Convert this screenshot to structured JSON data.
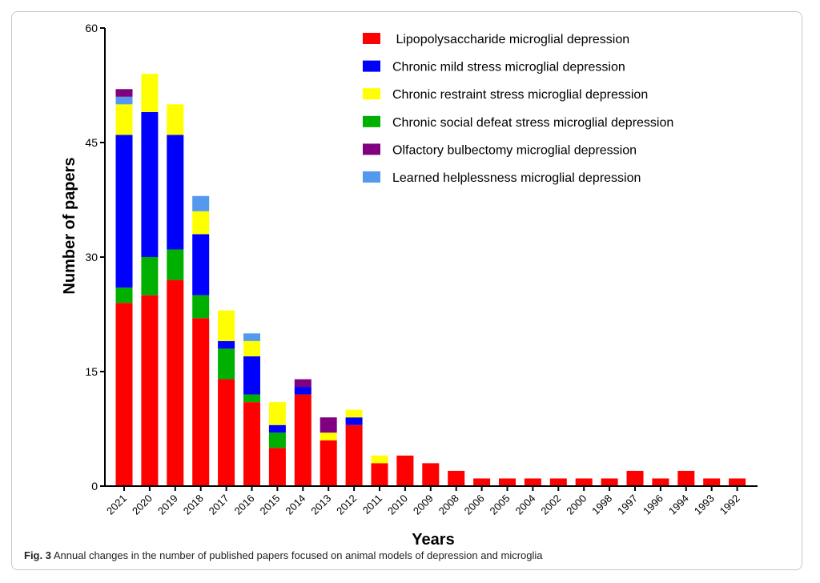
{
  "caption": {
    "label": "Fig. 3",
    "text": "Annual changes in the number of published papers focused on animal models of depression and microglia"
  },
  "chart_data": {
    "type": "bar",
    "stacked": true,
    "title": "",
    "xlabel": "Years",
    "ylabel": "Number of papers",
    "ylim": [
      0,
      60
    ],
    "yticks": [
      "0",
      "15",
      "30",
      "45",
      "60"
    ],
    "grid": false,
    "legend_position": "top-right",
    "categories": [
      "2021",
      "2020",
      "2019",
      "2018",
      "2017",
      "2016",
      "2015",
      "2014",
      "2013",
      "2012",
      "2011",
      "2010",
      "2009",
      "2008",
      "2006",
      "2005",
      "2004",
      "2002",
      "2000",
      "1998",
      "1997",
      "1996",
      "1994",
      "1993",
      "1992"
    ],
    "series": [
      {
        "name": " Lipopolysaccharide microglial depression",
        "color": "#ff0000",
        "values": [
          24,
          25,
          27,
          22,
          14,
          11,
          5,
          12,
          6,
          8,
          3,
          4,
          3,
          2,
          1,
          1,
          1,
          1,
          1,
          1,
          2,
          1,
          2,
          1,
          1
        ]
      },
      {
        "name": "Chronic social defeat stress microglial depression",
        "color": "#00b000",
        "values": [
          2,
          5,
          4,
          3,
          4,
          1,
          2,
          0,
          0,
          0,
          0,
          0,
          0,
          0,
          0,
          0,
          0,
          0,
          0,
          0,
          0,
          0,
          0,
          0,
          0
        ]
      },
      {
        "name": "Chronic mild stress microglial depression",
        "color": "#0000ff",
        "values": [
          20,
          19,
          15,
          8,
          1,
          5,
          1,
          1,
          0,
          1,
          0,
          0,
          0,
          0,
          0,
          0,
          0,
          0,
          0,
          0,
          0,
          0,
          0,
          0,
          0
        ]
      },
      {
        "name": "Chronic restraint stress microglial depression",
        "color": "#ffff00",
        "values": [
          4,
          5,
          4,
          3,
          4,
          2,
          3,
          0,
          1,
          1,
          1,
          0,
          0,
          0,
          0,
          0,
          0,
          0,
          0,
          0,
          0,
          0,
          0,
          0,
          0
        ]
      },
      {
        "name": "Learned helplessness microglial depression",
        "color": "#5599ee",
        "values": [
          1,
          0,
          0,
          2,
          0,
          1,
          0,
          0,
          0,
          0,
          0,
          0,
          0,
          0,
          0,
          0,
          0,
          0,
          0,
          0,
          0,
          0,
          0,
          0,
          0
        ]
      },
      {
        "name": "Olfactory bulbectomy microglial depression",
        "color": "#800080",
        "values": [
          1,
          0,
          0,
          0,
          0,
          0,
          0,
          1,
          2,
          0,
          0,
          0,
          0,
          0,
          0,
          0,
          0,
          0,
          0,
          0,
          0,
          0,
          0,
          0,
          0
        ]
      }
    ],
    "legend_order": [
      0,
      2,
      3,
      1,
      5,
      4
    ]
  }
}
